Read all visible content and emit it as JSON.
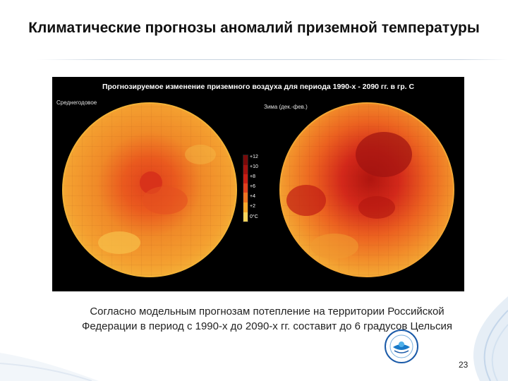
{
  "slide": {
    "title": "Климатические прогнозы аномалий приземной температуры",
    "page_number": "23",
    "caption_line1": "Согласно модельным прогнозам потепление на территории Российской",
    "caption_line2": "Федерации в период с 1990-х до 2090-х гг. составит до 6 градусов Цельсия"
  },
  "figure": {
    "title": "Прогнозируемое изменение приземного воздуха для периода 1990-х - 2090 гг. в гр. С",
    "left_panel_label": "Среднегодовое",
    "right_panel_label": "Зима (дек.-фев.)",
    "scale": [
      {
        "label": "+12",
        "color": "#7a0a0a"
      },
      {
        "label": "+10",
        "color": "#a3120f"
      },
      {
        "label": "+8",
        "color": "#c81e14"
      },
      {
        "label": "+6",
        "color": "#e0401c"
      },
      {
        "label": "+4",
        "color": "#ee7420"
      },
      {
        "label": "+2",
        "color": "#f6a82a"
      },
      {
        "label": "0°C",
        "color": "#f8d45a"
      }
    ]
  },
  "colors": {
    "accent": "#c81e14",
    "map_base": "#f0a030"
  }
}
